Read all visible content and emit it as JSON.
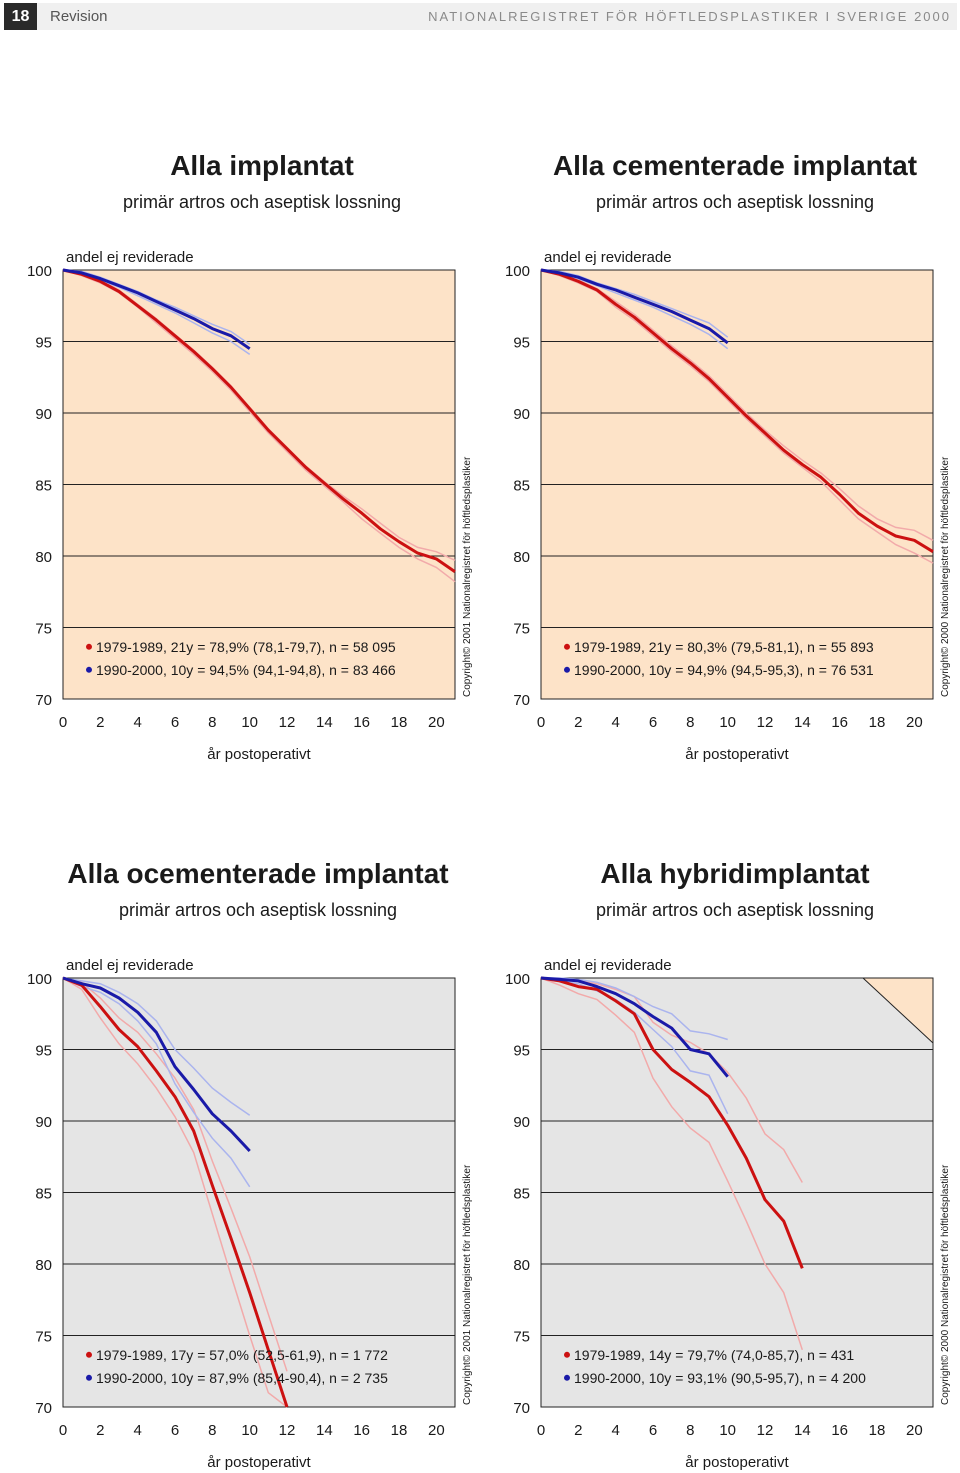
{
  "header": {
    "page_number": "18",
    "section": "Revision",
    "title": "NATIONALREGISTRET FÖR HÖFTLEDSPLASTIKER I SVERIGE 2000"
  },
  "colors": {
    "red": "#cc1111",
    "blue": "#1a1aa8",
    "red_ci": "#f2aaaa",
    "blue_ci": "#aab4ee",
    "peach_bg": "#fde3c8",
    "gray_bg": "#e5e5e5"
  },
  "chart_data": [
    {
      "type": "line",
      "title": "Alla implantat",
      "subtitle": "primär artros och aseptisk lossning",
      "ylabel": "andel ej reviderade",
      "xlabel": "år postoperativt",
      "xlim": [
        0,
        21
      ],
      "ylim": [
        70,
        100
      ],
      "xticks": [
        "0",
        "2",
        "4",
        "6",
        "8",
        "10",
        "12",
        "14",
        "16",
        "18",
        "20"
      ],
      "yticks": [
        "70",
        "75",
        "80",
        "85",
        "90",
        "95",
        "100"
      ],
      "background": "peach",
      "copyright": "Copyright© 2001 Nationalregistret för höftledsplastiker",
      "series": [
        {
          "name": "1979-1989, 21y = 78,9% (78,1-79,7), n = 58 095",
          "color": "red",
          "x": [
            0,
            1,
            2,
            3,
            4,
            5,
            6,
            7,
            8,
            9,
            10,
            11,
            12,
            13,
            14,
            15,
            16,
            17,
            18,
            19,
            20,
            21
          ],
          "y": [
            100,
            99.7,
            99.2,
            98.5,
            97.5,
            96.5,
            95.4,
            94.3,
            93.1,
            91.8,
            90.3,
            88.8,
            87.5,
            86.2,
            85.1,
            84.0,
            83.0,
            81.9,
            81.0,
            80.2,
            79.8,
            78.9
          ],
          "lower": [
            100,
            99.6,
            99.1,
            98.4,
            97.4,
            96.3,
            95.2,
            94.1,
            92.9,
            91.6,
            90.1,
            88.6,
            87.3,
            86.0,
            84.9,
            83.8,
            82.6,
            81.6,
            80.6,
            79.8,
            79.2,
            78.2
          ],
          "upper": [
            100,
            99.8,
            99.3,
            98.6,
            97.6,
            96.6,
            95.5,
            94.4,
            93.2,
            91.9,
            90.4,
            88.9,
            87.6,
            86.3,
            85.2,
            84.2,
            83.3,
            82.3,
            81.3,
            80.6,
            80.3,
            79.7
          ]
        },
        {
          "name": "1990-2000, 10y = 94,5% (94,1-94,8), n = 83 466",
          "color": "blue",
          "x": [
            0,
            1,
            2,
            3,
            4,
            5,
            6,
            7,
            8,
            9,
            10
          ],
          "y": [
            100,
            99.8,
            99.4,
            98.9,
            98.4,
            97.8,
            97.2,
            96.6,
            95.9,
            95.4,
            94.5
          ],
          "lower": [
            100,
            99.7,
            99.3,
            98.8,
            98.2,
            97.6,
            97.0,
            96.3,
            95.6,
            95.0,
            94.1
          ],
          "upper": [
            100,
            99.9,
            99.5,
            99.0,
            98.5,
            97.9,
            97.4,
            96.8,
            96.2,
            95.7,
            94.8
          ]
        }
      ]
    },
    {
      "type": "line",
      "title": "Alla cementerade implantat",
      "subtitle": "primär artros och aseptisk lossning",
      "ylabel": "andel ej reviderade",
      "xlabel": "år postoperativt",
      "xlim": [
        0,
        21
      ],
      "ylim": [
        70,
        100
      ],
      "xticks": [
        "0",
        "2",
        "4",
        "6",
        "8",
        "10",
        "12",
        "14",
        "16",
        "18",
        "20"
      ],
      "yticks": [
        "70",
        "75",
        "80",
        "85",
        "90",
        "95",
        "100"
      ],
      "background": "peach",
      "copyright": "Copyright© 2000 Nationalregistret för höftledsplastiker",
      "series": [
        {
          "name": "1979-1989, 21y = 80,3% (79,5-81,1), n = 55 893",
          "color": "red",
          "x": [
            0,
            1,
            2,
            3,
            4,
            5,
            6,
            7,
            8,
            9,
            10,
            11,
            12,
            13,
            14,
            15,
            16,
            17,
            18,
            19,
            20,
            21
          ],
          "y": [
            100,
            99.7,
            99.2,
            98.6,
            97.6,
            96.7,
            95.6,
            94.5,
            93.5,
            92.4,
            91.1,
            89.8,
            88.6,
            87.4,
            86.4,
            85.5,
            84.3,
            83.0,
            82.1,
            81.4,
            81.1,
            80.3
          ],
          "lower": [
            100,
            99.6,
            99.1,
            98.5,
            97.4,
            96.5,
            95.4,
            94.3,
            93.3,
            92.2,
            90.9,
            89.6,
            88.4,
            87.2,
            86.2,
            85.2,
            83.9,
            82.6,
            81.7,
            80.8,
            80.2,
            79.5
          ],
          "upper": [
            100,
            99.8,
            99.3,
            98.7,
            97.8,
            96.9,
            95.8,
            94.7,
            93.7,
            92.6,
            91.3,
            90.0,
            88.8,
            87.7,
            86.7,
            85.8,
            84.7,
            83.5,
            82.6,
            82.0,
            81.8,
            81.1
          ]
        },
        {
          "name": "1990-2000, 10y = 94,9% (94,5-95,3), n = 76 531",
          "color": "blue",
          "x": [
            0,
            1,
            2,
            3,
            4,
            5,
            6,
            7,
            8,
            9,
            10
          ],
          "y": [
            100,
            99.8,
            99.5,
            99.0,
            98.6,
            98.1,
            97.6,
            97.1,
            96.5,
            95.9,
            94.9
          ],
          "lower": [
            100,
            99.7,
            99.4,
            98.9,
            98.4,
            97.9,
            97.4,
            96.8,
            96.2,
            95.5,
            94.5
          ],
          "upper": [
            100,
            99.9,
            99.6,
            99.1,
            98.7,
            98.3,
            97.8,
            97.3,
            96.8,
            96.3,
            95.3
          ]
        }
      ]
    },
    {
      "type": "line",
      "title": "Alla ocementerade implantat",
      "subtitle": "primär artros och aseptisk lossning",
      "ylabel": "andel ej reviderade",
      "xlabel": "år postoperativt",
      "xlim": [
        0,
        21
      ],
      "ylim": [
        70,
        100
      ],
      "xticks": [
        "0",
        "2",
        "4",
        "6",
        "8",
        "10",
        "12",
        "14",
        "16",
        "18",
        "20"
      ],
      "yticks": [
        "70",
        "75",
        "80",
        "85",
        "90",
        "95",
        "100"
      ],
      "background": "gray",
      "copyright": "Copyright© 2001 Nationalregistret för höftledsplastiker",
      "series": [
        {
          "name": "1979-1989, 17y = 57,0% (52,5-61,9), n = 1 772",
          "color": "red",
          "x": [
            0,
            1,
            2,
            3,
            4,
            5,
            6,
            7,
            8,
            9,
            10,
            11,
            12
          ],
          "y": [
            100,
            99.5,
            98.0,
            96.4,
            95.2,
            93.5,
            91.7,
            89.3,
            85.5,
            81.8,
            78.0,
            74.0,
            70.0
          ],
          "lower": [
            100,
            99.2,
            97.2,
            95.4,
            94.0,
            92.3,
            90.3,
            87.8,
            83.5,
            79.2,
            75.0,
            71.0,
            70.0
          ],
          "upper": [
            100,
            99.7,
            98.6,
            97.2,
            96.2,
            94.7,
            93.0,
            90.8,
            87.2,
            83.9,
            80.5,
            76.5,
            72.5
          ]
        },
        {
          "name": "1990-2000, 10y = 87,9% (85,4-90,4), n = 2 735",
          "color": "blue",
          "x": [
            0,
            1,
            2,
            3,
            4,
            5,
            6,
            7,
            8,
            9,
            10
          ],
          "y": [
            100,
            99.6,
            99.3,
            98.6,
            97.6,
            96.2,
            93.8,
            92.2,
            90.5,
            89.3,
            87.9
          ],
          "lower": [
            100,
            99.4,
            99.0,
            98.2,
            97.0,
            95.4,
            92.6,
            90.6,
            88.8,
            87.4,
            85.4
          ],
          "upper": [
            100,
            99.8,
            99.6,
            99.0,
            98.2,
            97.0,
            95.0,
            93.7,
            92.3,
            91.3,
            90.4
          ]
        }
      ]
    },
    {
      "type": "line",
      "title": "Alla hybridimplantat",
      "subtitle": "primär artros och aseptisk lossning",
      "ylabel": "andel ej reviderade",
      "xlabel": "år postoperativt",
      "xlim": [
        0,
        21
      ],
      "ylim": [
        70,
        100
      ],
      "xticks": [
        "0",
        "2",
        "4",
        "6",
        "8",
        "10",
        "12",
        "14",
        "16",
        "18",
        "20"
      ],
      "yticks": [
        "70",
        "75",
        "80",
        "85",
        "90",
        "95",
        "100"
      ],
      "background": "gray",
      "copyright": "Copyright© 2000 Nationalregistret för höftledsplastiker",
      "series": [
        {
          "name": "1979-1989, 14y = 79,7% (74,0-85,7), n = 431",
          "color": "red",
          "x": [
            0,
            1,
            2,
            3,
            4,
            5,
            6,
            7,
            8,
            9,
            10,
            11,
            12,
            13,
            14
          ],
          "y": [
            100,
            99.8,
            99.4,
            99.2,
            98.4,
            97.5,
            95.0,
            93.6,
            92.7,
            91.7,
            89.7,
            87.4,
            84.5,
            83.0,
            79.7
          ],
          "lower": [
            100,
            99.5,
            98.9,
            98.5,
            97.4,
            96.2,
            93.0,
            91.0,
            89.5,
            88.5,
            85.8,
            83.0,
            80.0,
            78.0,
            74.0
          ],
          "upper": [
            100,
            99.9,
            99.8,
            99.6,
            99.2,
            98.7,
            96.9,
            96.0,
            95.5,
            94.7,
            93.4,
            91.6,
            89.1,
            88.0,
            85.7
          ]
        },
        {
          "name": "1990-2000, 10y = 93,1% (90,5-95,7), n = 4 200",
          "color": "blue",
          "x": [
            0,
            1,
            2,
            3,
            4,
            5,
            6,
            7,
            8,
            9,
            10
          ],
          "y": [
            100,
            99.9,
            99.8,
            99.4,
            98.9,
            98.2,
            97.3,
            96.5,
            95.0,
            94.7,
            93.1
          ],
          "lower": [
            100,
            99.8,
            99.6,
            99.1,
            98.5,
            97.6,
            96.4,
            95.2,
            93.5,
            93.2,
            90.5
          ],
          "upper": [
            100,
            100,
            99.9,
            99.7,
            99.3,
            98.7,
            98.0,
            97.5,
            96.3,
            96.1,
            95.7
          ]
        }
      ]
    }
  ]
}
